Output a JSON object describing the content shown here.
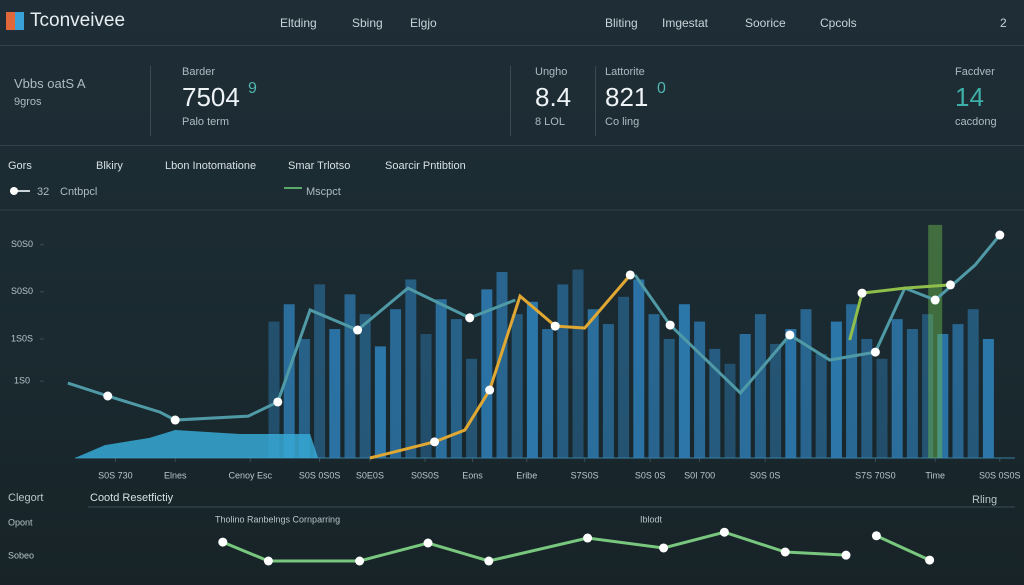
{
  "header": {
    "title": "Tconveivee",
    "nav_left": [
      "Eltding",
      "Sbing",
      "Elgjo"
    ],
    "nav_right": [
      "Bliting",
      "Imgestat",
      "Soorice",
      "Cpcols",
      "2"
    ]
  },
  "kpis": [
    {
      "label": "Vbbs oatS A",
      "sub": "9gros"
    },
    {
      "label": "Barder",
      "value": "7504",
      "extra": "9",
      "sub": "Palo term"
    },
    {
      "label": "Ungho",
      "value": "8.4",
      "sub": "8 LOL"
    },
    {
      "label": "Lattorite",
      "value": "821",
      "extra": "0",
      "sub": "Co ling"
    },
    {
      "label": "Facdver",
      "value": "14",
      "sub": "cacdong"
    }
  ],
  "legend_row": {
    "items": [
      "Gors",
      "Blkiry",
      "Lbon Inotomatione",
      "Smar Trlotso",
      "Soarcir Pntibtion"
    ],
    "sub_items": [
      "32",
      "Cntbpcl",
      "Mscpct"
    ]
  },
  "chart_data": [
    {
      "type": "combo",
      "xlim": [
        0,
        100
      ],
      "ylim": [
        0,
        100
      ],
      "yticks": [
        {
          "value": 86,
          "label": "S0S0"
        },
        {
          "value": 67,
          "label": "S0S0"
        },
        {
          "value": 48,
          "label": "1S0S"
        },
        {
          "value": 31,
          "label": "1S0"
        }
      ],
      "xticks": [
        {
          "value": 5.3,
          "label": "S0S 730"
        },
        {
          "value": 11.6,
          "label": "Elnes"
        },
        {
          "value": 19.5,
          "label": "Cenoy Esc"
        },
        {
          "value": 26.8,
          "label": "S0S 0S0S"
        },
        {
          "value": 32.1,
          "label": "S0E0S"
        },
        {
          "value": 37.9,
          "label": "S0S0S"
        },
        {
          "value": 42.9,
          "label": "Eons"
        },
        {
          "value": 48.6,
          "label": "Eribe"
        },
        {
          "value": 54.7,
          "label": "S7S0S"
        },
        {
          "value": 61.6,
          "label": "S0S 0S"
        },
        {
          "value": 66.8,
          "label": "S0I 700"
        },
        {
          "value": 73.7,
          "label": "S0S 0S"
        },
        {
          "value": 85.3,
          "label": "S7S 70S0"
        },
        {
          "value": 91.6,
          "label": "Time"
        },
        {
          "value": 98.4,
          "label": "S0S 0S0S"
        }
      ],
      "series": [
        {
          "type": "bar",
          "color": "#2f7fb8",
          "x": [
            22,
            23.6,
            25.2,
            26.8,
            28.4,
            30,
            31.6,
            33.2,
            34.8,
            36.4,
            38,
            39.6,
            41.2,
            42.8,
            44.4,
            46,
            47.6,
            49.2,
            50.8,
            52.4,
            54,
            55.6,
            57.2,
            58.8,
            60.4,
            62,
            63.6,
            65.2,
            66.8,
            68.4,
            70,
            71.6,
            73.2,
            74.8,
            76.4,
            78,
            79.6,
            81.2,
            82.8,
            84.4,
            86,
            87.6,
            89.2,
            90.8,
            92.4,
            94,
            95.6,
            97.2
          ],
          "values": [
            55,
            62,
            48,
            70,
            52,
            66,
            58,
            45,
            60,
            72,
            50,
            64,
            56,
            40,
            68,
            75,
            58,
            63,
            52,
            70,
            76,
            60,
            54,
            65,
            72,
            58,
            48,
            62,
            55,
            44,
            38,
            50,
            58,
            46,
            52,
            60,
            42,
            55,
            62,
            48,
            40,
            56,
            52,
            58,
            50,
            54,
            60,
            48
          ]
        },
        {
          "type": "bar",
          "color": "#6fbf4f",
          "x": [
            91.6
          ],
          "values": [
            94
          ]
        },
        {
          "type": "area",
          "color": "#37a9d6",
          "x": [
            4.2,
            8.9,
            11.6,
            18.4,
            25.8
          ],
          "values": [
            5.2,
            8.1,
            11.3,
            9.7,
            9.7
          ]
        },
        {
          "type": "line",
          "color": "#4f9aa6",
          "x": [
            0.3,
            4.5,
            10,
            11.6,
            19.3,
            22.4,
            25.8,
            30.8,
            36.1,
            42.6,
            47.4,
            null,
            60,
            63.7,
            71.1,
            76.3,
            80.5,
            85.3,
            88.4,
            91.6,
            95.8,
            98.4
          ],
          "values": [
            30.2,
            25,
            18.5,
            15.3,
            16.9,
            22.6,
            59.7,
            51.6,
            68.5,
            56.5,
            63.7,
            null,
            73.8,
            53.6,
            26.2,
            49.6,
            39.5,
            42.7,
            68.5,
            63.7,
            77.8,
            89.9
          ]
        },
        {
          "type": "line",
          "color": "#e0a833",
          "x": [
            32.1,
            38.9,
            42.1,
            44.7,
            47.9,
            51.6,
            54.7,
            59.5
          ],
          "values": [
            0,
            6.5,
            11.3,
            27.4,
            65.3,
            53.2,
            52.4,
            73.8
          ]
        },
        {
          "type": "line",
          "color": "#8fbf4a",
          "x": [
            82.6,
            83.9,
            88.4,
            93.2
          ],
          "values": [
            47.6,
            66.5,
            68.5,
            69.8
          ]
        }
      ]
    },
    {
      "type": "line",
      "title": "Cootd Resetfictiy",
      "annotations": [
        "Clegort",
        "Opont",
        "Sobeo",
        "Tholino Ranbelngs Cornparring",
        "Iblodt",
        "Rling"
      ],
      "xlim": [
        0,
        100
      ],
      "ylim": [
        0,
        100
      ],
      "series": [
        {
          "color": "#79c77e",
          "x": [
            3,
            9,
            21,
            30,
            38,
            51,
            61,
            69,
            77,
            85,
            null,
            89,
            96
          ],
          "values": [
            62,
            20,
            20,
            60,
            20,
            71,
            49,
            84,
            40,
            33,
            null,
            76,
            22
          ]
        }
      ]
    }
  ]
}
